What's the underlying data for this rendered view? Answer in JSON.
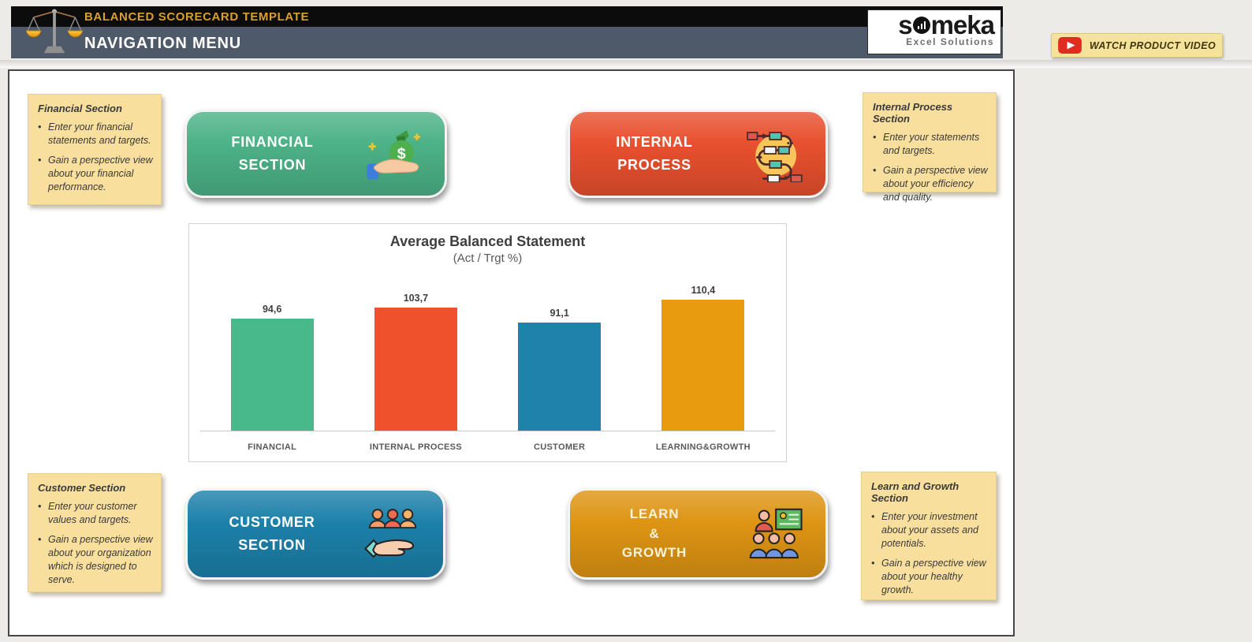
{
  "header": {
    "app_title": "BALANCED SCORECARD TEMPLATE",
    "page_title": "NAVIGATION MENU",
    "logo_text": "someka",
    "logo_subtext": "Excel Solutions",
    "watch_video_label": "WATCH PRODUCT VIDEO",
    "colors": {
      "top_band": "#0c0c0c",
      "bottom_band": "#4e5a6a",
      "title_gold": "#d6a02f",
      "video_btn_bg": "#f6e39b"
    }
  },
  "notes": {
    "financial": {
      "title": "Financial Section",
      "bullets": [
        "Enter your financial statements and targets.",
        "Gain a perspective view about your financial performance."
      ]
    },
    "internal": {
      "title": "Internal Process Section",
      "bullets": [
        "Enter your statements and targets.",
        "Gain a perspective view about your efficiency and quality."
      ]
    },
    "customer": {
      "title": "Customer Section",
      "bullets": [
        "Enter your customer values and targets.",
        "Gain a perspective view about your organization which is designed to serve."
      ]
    },
    "learn": {
      "title": "Learn and Growth Section",
      "bullets": [
        "Enter your investment about your assets and potentials.",
        "Gain a perspective view about your healthy growth."
      ]
    }
  },
  "buttons": {
    "financial": {
      "lines": [
        "FINANCIAL",
        "SECTION"
      ],
      "color": "#4cb287",
      "icon": "money-in-hand-icon"
    },
    "internal": {
      "lines": [
        "INTERNAL",
        "PROCESS"
      ],
      "color": "#e8502e",
      "icon": "process-flow-icon"
    },
    "customer": {
      "lines": [
        "CUSTOMER",
        "SECTION"
      ],
      "color": "#1c80a9",
      "icon": "customers-hand-icon"
    },
    "learn": {
      "lines": [
        "LEARN",
        "&",
        "GROWTH"
      ],
      "color": "#de9413",
      "icon": "training-presentation-icon"
    }
  },
  "chart_data": {
    "type": "bar",
    "title": "Average Balanced Statement",
    "subtitle": "(Act / Trgt %)",
    "categories": [
      "FINANCIAL",
      "INTERNAL PROCESS",
      "CUSTOMER",
      "LEARNING&GROWTH"
    ],
    "values": [
      94.6,
      103.7,
      91.1,
      110.4
    ],
    "value_labels": [
      "94,6",
      "103,7",
      "91,1",
      "110,4"
    ],
    "colors": [
      "#47b98b",
      "#f0512d",
      "#1f82ab",
      "#e89b0f"
    ],
    "ylim": [
      0,
      120
    ],
    "grid": false,
    "legend": false,
    "data_labels": true
  },
  "icons": {
    "header_logo": "balance-scales-icon",
    "video": "youtube-play-icon"
  }
}
